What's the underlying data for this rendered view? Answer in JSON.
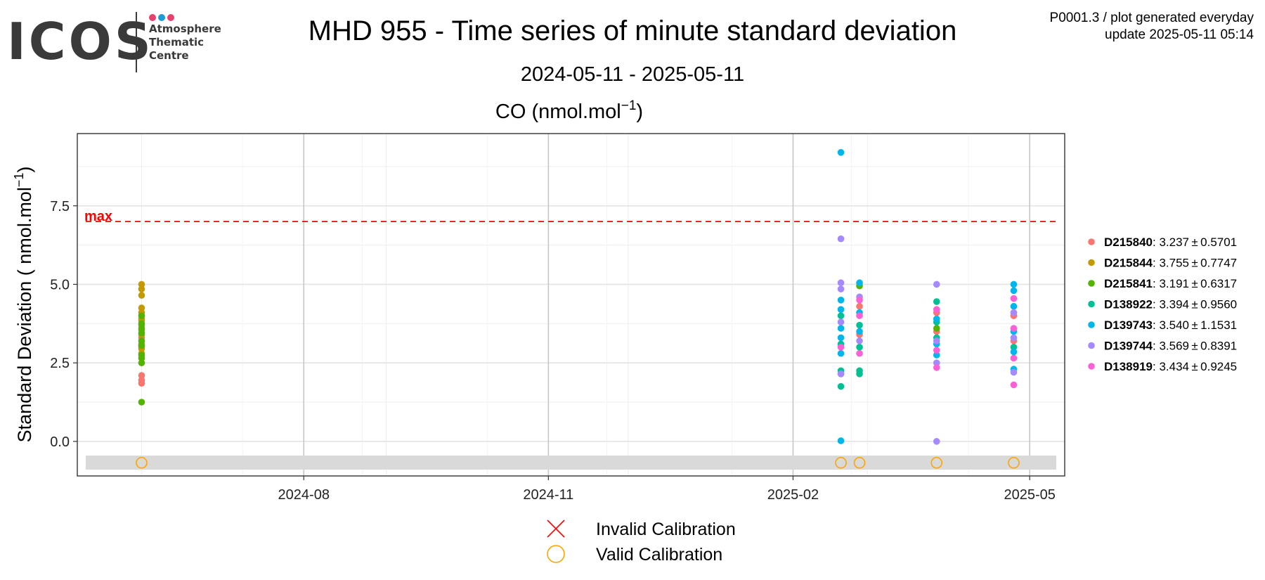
{
  "logo": {
    "text": "ICOS",
    "sub_lines": [
      "Atmosphere",
      "Thematic",
      "Centre"
    ],
    "dot_colors": [
      "#e8416d",
      "#1e9bd7",
      "#e8416d"
    ]
  },
  "title": "MHD 955 - Time series of minute standard deviation",
  "subtitle": "2024-05-11 - 2025-05-11",
  "meta": {
    "line1": "P0001.3 / plot generated everyday",
    "line2": "update  2025-05-11 05:14"
  },
  "chart_data": {
    "type": "scatter",
    "panel_title": "CO (nmol.mol",
    "panel_title_sup": "−1",
    "panel_title_end": ")",
    "ylabel": "Standard Deviation ( nmol.mol",
    "ylabel_sup": "−1",
    "ylabel_end": ")",
    "xlim": [
      "2024-05-11",
      "2025-05-11"
    ],
    "ylim": [
      -1.1,
      9.8
    ],
    "x_ticks": [
      {
        "date": "2024-08-01",
        "label": "2024-08"
      },
      {
        "date": "2024-11-01",
        "label": "2024-11"
      },
      {
        "date": "2025-02-01",
        "label": "2025-02"
      },
      {
        "date": "2025-05-01",
        "label": "2025-05"
      }
    ],
    "y_ticks": [
      0.0,
      2.5,
      5.0,
      7.5
    ],
    "y_tick_labels": [
      "0.0",
      "2.5",
      "5.0",
      "7.5"
    ],
    "grid": true,
    "max_line": {
      "y": 7.0,
      "label": "max",
      "color": "#ff0000"
    },
    "calibration_band": {
      "y_low": -0.9,
      "y_high": -0.45,
      "color": "#d9d9d9"
    },
    "calibrations": [
      {
        "date": "2024-06-01",
        "y": -0.68,
        "status": "valid"
      },
      {
        "date": "2025-02-19",
        "y": -0.68,
        "status": "valid"
      },
      {
        "date": "2025-02-26",
        "y": -0.68,
        "status": "valid"
      },
      {
        "date": "2025-03-27",
        "y": -0.68,
        "status": "valid"
      },
      {
        "date": "2025-04-25",
        "y": -0.68,
        "status": "valid"
      }
    ],
    "series": [
      {
        "name": "D215840",
        "stats": ": 3.237 ± 0.5701",
        "color": "#f8766d",
        "points": [
          [
            "2024-06-01",
            1.85
          ],
          [
            "2024-06-01",
            1.95
          ],
          [
            "2024-06-01",
            2.1
          ],
          [
            "2024-06-01",
            3.0
          ],
          [
            "2024-06-01",
            3.3
          ],
          [
            "2025-02-26",
            4.3
          ],
          [
            "2025-02-26",
            3.4
          ],
          [
            "2025-03-27",
            4.1
          ],
          [
            "2025-03-27",
            3.5
          ],
          [
            "2025-04-25",
            3.2
          ],
          [
            "2025-04-25",
            4.0
          ]
        ]
      },
      {
        "name": "D215844",
        "stats": ": 3.755 ± 0.7747",
        "color": "#c49a00",
        "points": [
          [
            "2024-06-01",
            5.0
          ],
          [
            "2024-06-01",
            4.85
          ],
          [
            "2024-06-01",
            4.65
          ],
          [
            "2024-06-01",
            4.25
          ],
          [
            "2024-06-01",
            4.1
          ],
          [
            "2024-06-01",
            3.9
          ],
          [
            "2024-06-01",
            3.7
          ],
          [
            "2024-06-01",
            3.55
          ],
          [
            "2024-06-01",
            3.4
          ],
          [
            "2024-06-01",
            3.1
          ],
          [
            "2024-06-01",
            2.95
          ],
          [
            "2024-06-01",
            2.8
          ],
          [
            "2024-06-01",
            3.85
          ]
        ]
      },
      {
        "name": "D215841",
        "stats": ": 3.191 ± 0.6317",
        "color": "#53b400",
        "points": [
          [
            "2024-06-01",
            1.25
          ],
          [
            "2024-06-01",
            2.5
          ],
          [
            "2024-06-01",
            2.65
          ],
          [
            "2024-06-01",
            2.75
          ],
          [
            "2024-06-01",
            3.05
          ],
          [
            "2024-06-01",
            3.2
          ],
          [
            "2024-06-01",
            3.45
          ],
          [
            "2024-06-01",
            3.6
          ],
          [
            "2024-06-01",
            3.75
          ],
          [
            "2024-06-01",
            4.0
          ],
          [
            "2025-02-26",
            4.95
          ],
          [
            "2025-03-27",
            3.6
          ]
        ]
      },
      {
        "name": "D138922",
        "stats": ": 3.394 ± 0.9560",
        "color": "#00c094",
        "points": [
          [
            "2025-02-19",
            1.75
          ],
          [
            "2025-02-19",
            2.15
          ],
          [
            "2025-02-19",
            2.25
          ],
          [
            "2025-02-19",
            3.1
          ],
          [
            "2025-02-19",
            4.0
          ],
          [
            "2025-02-26",
            2.15
          ],
          [
            "2025-02-26",
            2.25
          ],
          [
            "2025-02-26",
            3.0
          ],
          [
            "2025-02-26",
            3.7
          ],
          [
            "2025-03-27",
            3.3
          ],
          [
            "2025-03-27",
            3.8
          ],
          [
            "2025-03-27",
            4.45
          ],
          [
            "2025-04-25",
            3.0
          ]
        ]
      },
      {
        "name": "D139743",
        "stats": ": 3.540 ± 1.1531",
        "color": "#00b6eb",
        "points": [
          [
            "2025-02-19",
            9.2
          ],
          [
            "2025-02-19",
            0.02
          ],
          [
            "2025-02-19",
            2.8
          ],
          [
            "2025-02-19",
            3.3
          ],
          [
            "2025-02-19",
            3.6
          ],
          [
            "2025-02-19",
            4.2
          ],
          [
            "2025-02-19",
            4.5
          ],
          [
            "2025-02-26",
            5.05
          ],
          [
            "2025-02-26",
            4.1
          ],
          [
            "2025-02-26",
            3.5
          ],
          [
            "2025-03-27",
            2.75
          ],
          [
            "2025-03-27",
            3.1
          ],
          [
            "2025-03-27",
            3.9
          ],
          [
            "2025-04-25",
            2.3
          ],
          [
            "2025-04-25",
            2.85
          ],
          [
            "2025-04-25",
            3.5
          ],
          [
            "2025-04-25",
            4.3
          ],
          [
            "2025-04-25",
            4.8
          ],
          [
            "2025-04-25",
            5.0
          ]
        ]
      },
      {
        "name": "D139744",
        "stats": ": 3.569 ± 0.8391",
        "color": "#a58aff",
        "points": [
          [
            "2025-02-19",
            6.45
          ],
          [
            "2025-02-19",
            5.05
          ],
          [
            "2025-02-19",
            4.85
          ],
          [
            "2025-02-19",
            3.8
          ],
          [
            "2025-02-19",
            2.15
          ],
          [
            "2025-02-26",
            4.6
          ],
          [
            "2025-02-26",
            3.2
          ],
          [
            "2025-03-27",
            5.0
          ],
          [
            "2025-03-27",
            0.0
          ],
          [
            "2025-03-27",
            2.5
          ],
          [
            "2025-03-27",
            3.2
          ],
          [
            "2025-04-25",
            2.2
          ],
          [
            "2025-04-25",
            3.3
          ],
          [
            "2025-04-25",
            4.1
          ]
        ]
      },
      {
        "name": "D138919",
        "stats": ": 3.434 ± 0.9245",
        "color": "#fb61d7",
        "points": [
          [
            "2025-02-19",
            3.0
          ],
          [
            "2025-02-26",
            2.8
          ],
          [
            "2025-02-26",
            4.0
          ],
          [
            "2025-02-26",
            4.5
          ],
          [
            "2025-03-27",
            2.35
          ],
          [
            "2025-03-27",
            2.9
          ],
          [
            "2025-03-27",
            4.2
          ],
          [
            "2025-04-25",
            1.8
          ],
          [
            "2025-04-25",
            2.65
          ],
          [
            "2025-04-25",
            3.6
          ],
          [
            "2025-04-25",
            4.55
          ]
        ]
      }
    ],
    "bottom_legend": [
      {
        "label": "Invalid Calibration",
        "symbol": "cross",
        "color": "#ff0000"
      },
      {
        "label": "Valid Calibration",
        "symbol": "circle",
        "color": "#ffa500"
      }
    ]
  }
}
